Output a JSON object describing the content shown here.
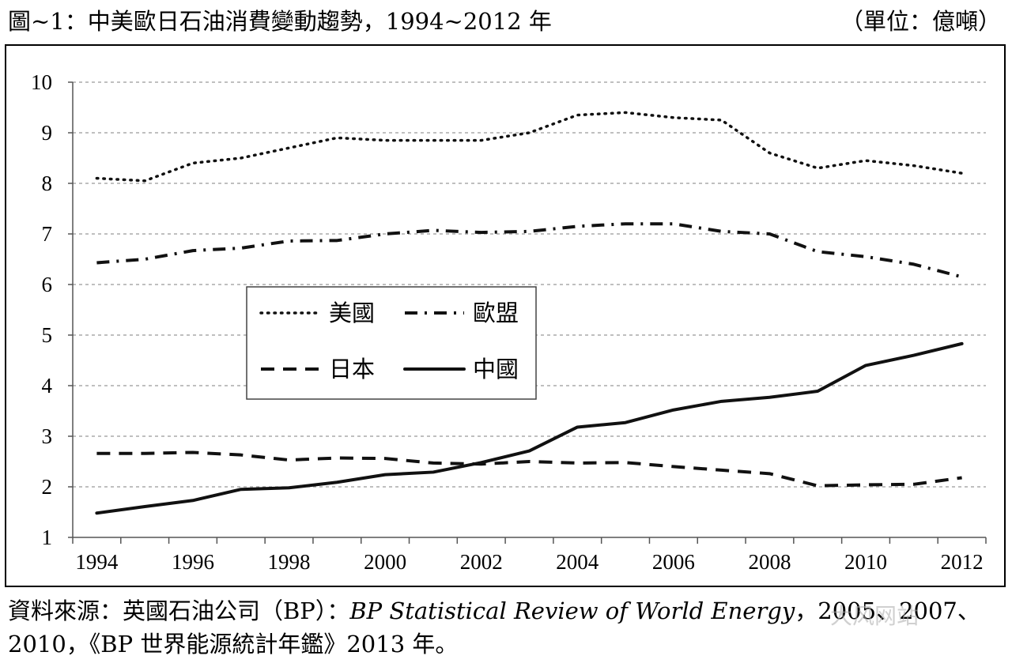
{
  "caption": {
    "title": "圖~1：中美歐日石油消費變動趨勢，1994~2012 年",
    "unit": "（單位：億噸）"
  },
  "source": {
    "prefix": "資料來源：英國石油公司（BP）：",
    "italic": "BP Statistical Review of World Energy",
    "suffix": "，2005、2007、2010，《BP 世界能源統計年鑑》2013 年。"
  },
  "watermark": "大风网站",
  "chart_data": {
    "type": "line",
    "title": "",
    "xlabel": "",
    "ylabel": "",
    "x": [
      1994,
      1995,
      1996,
      1997,
      1998,
      1999,
      2000,
      2001,
      2002,
      2003,
      2004,
      2005,
      2006,
      2007,
      2008,
      2009,
      2010,
      2011,
      2012
    ],
    "x_ticks": [
      "1994",
      "1996",
      "1998",
      "2000",
      "2002",
      "2004",
      "2006",
      "2008",
      "2010",
      "2012"
    ],
    "ylim": [
      1,
      10
    ],
    "y_ticks": [
      1,
      2,
      3,
      4,
      5,
      6,
      7,
      8,
      9,
      10
    ],
    "grid": "horizontal dashed",
    "legend_position": "center-left",
    "series": [
      {
        "name": "美國",
        "style": "dotted",
        "values": [
          8.1,
          8.05,
          8.4,
          8.5,
          8.7,
          8.9,
          8.85,
          8.85,
          8.85,
          9.0,
          9.35,
          9.4,
          9.3,
          9.25,
          8.6,
          8.3,
          8.45,
          8.35,
          8.2
        ]
      },
      {
        "name": "歐盟",
        "style": "dashdot",
        "values": [
          6.43,
          6.5,
          6.67,
          6.72,
          6.86,
          6.87,
          7.0,
          7.07,
          7.03,
          7.05,
          7.15,
          7.2,
          7.2,
          7.05,
          7.0,
          6.65,
          6.55,
          6.4,
          6.15
        ]
      },
      {
        "name": "日本",
        "style": "dashed",
        "values": [
          2.66,
          2.66,
          2.68,
          2.63,
          2.53,
          2.57,
          2.56,
          2.47,
          2.45,
          2.5,
          2.47,
          2.48,
          2.4,
          2.33,
          2.26,
          2.02,
          2.04,
          2.05,
          2.18
        ]
      },
      {
        "name": "中國",
        "style": "solid",
        "values": [
          1.48,
          1.61,
          1.73,
          1.95,
          1.98,
          2.09,
          2.24,
          2.29,
          2.48,
          2.71,
          3.18,
          3.27,
          3.52,
          3.69,
          3.77,
          3.89,
          4.4,
          4.6,
          4.83
        ]
      }
    ]
  }
}
